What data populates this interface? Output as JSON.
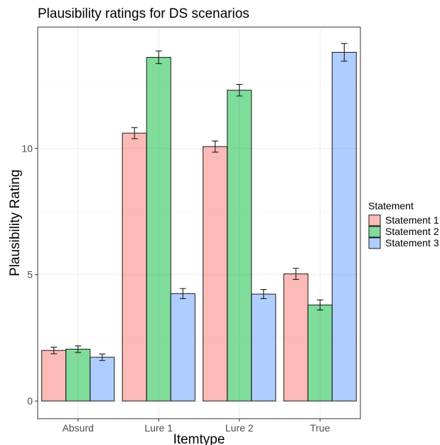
{
  "chart_data": {
    "type": "bar",
    "title": "Plausibility ratings for DS scenarios",
    "xlabel": "Itemtype",
    "ylabel": "Plausibility Rating",
    "categories": [
      "Absurd",
      "Lure 1",
      "Lure 2",
      "True"
    ],
    "ylim": [
      -0.7,
      14.8
    ],
    "yticks": [
      0,
      5,
      10
    ],
    "grid": true,
    "legend": {
      "title": "Statement",
      "placement": "right"
    },
    "series": [
      {
        "name": "Statement 1",
        "color": "#F8766D",
        "values": [
          2.0,
          10.6,
          10.07,
          5.03
        ],
        "errors": [
          0.13,
          0.22,
          0.22,
          0.22
        ]
      },
      {
        "name": "Statement 2",
        "color": "#00BA38",
        "values": [
          2.05,
          13.6,
          12.3,
          3.8
        ],
        "errors": [
          0.13,
          0.25,
          0.23,
          0.2
        ]
      },
      {
        "name": "Statement 3",
        "color": "#619CFF",
        "values": [
          1.73,
          4.25,
          4.23,
          13.8
        ],
        "errors": [
          0.13,
          0.2,
          0.18,
          0.35
        ]
      }
    ]
  }
}
